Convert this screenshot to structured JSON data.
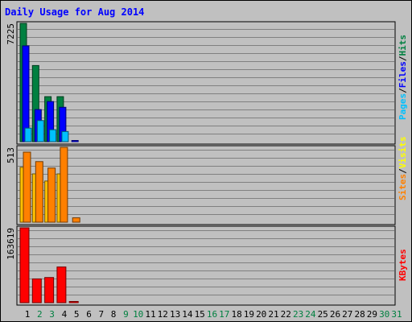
{
  "chart_data": {
    "type": "bar",
    "title": "Daily Usage for Aug 2014",
    "categories": [
      "1",
      "2",
      "3",
      "4",
      "5",
      "6",
      "7",
      "8",
      "9",
      "10",
      "11",
      "12",
      "13",
      "14",
      "15",
      "16",
      "17",
      "18",
      "19",
      "20",
      "21",
      "22",
      "23",
      "24",
      "25",
      "26",
      "27",
      "28",
      "29",
      "30",
      "31"
    ],
    "weekend_days": [
      "2",
      "3",
      "9",
      "10",
      "16",
      "17",
      "23",
      "24",
      "30",
      "31"
    ],
    "grid": true,
    "panels": [
      {
        "name": "hits-files-pages",
        "ymax_label": "7225",
        "ylim": [
          0,
          7225
        ],
        "label_parts": [
          {
            "text": "Pages",
            "color": "#00c0ff"
          },
          {
            "text": "/",
            "color": "#000000"
          },
          {
            "text": "Files",
            "color": "#0000ff"
          },
          {
            "text": "/",
            "color": "#000000"
          },
          {
            "text": "Hits",
            "color": "#008040"
          }
        ],
        "series": [
          {
            "name": "Hits",
            "color": "#008040",
            "values": [
              7225,
              4650,
              2750,
              2750,
              0,
              0,
              0,
              0,
              0,
              0,
              0,
              0,
              0,
              0,
              0,
              0,
              0,
              0,
              0,
              0,
              0,
              0,
              0,
              0,
              0,
              0,
              0,
              0,
              0,
              0,
              0
            ]
          },
          {
            "name": "Files",
            "color": "#0000ff",
            "values": [
              5850,
              1960,
              2450,
              2100,
              40,
              0,
              0,
              0,
              0,
              0,
              0,
              0,
              0,
              0,
              0,
              0,
              0,
              0,
              0,
              0,
              0,
              0,
              0,
              0,
              0,
              0,
              0,
              0,
              0,
              0,
              0
            ]
          },
          {
            "name": "Pages",
            "color": "#00c0ff",
            "values": [
              830,
              1290,
              730,
              620,
              0,
              0,
              0,
              0,
              0,
              0,
              0,
              0,
              0,
              0,
              0,
              0,
              0,
              0,
              0,
              0,
              0,
              0,
              0,
              0,
              0,
              0,
              0,
              0,
              0,
              0,
              0
            ]
          }
        ]
      },
      {
        "name": "visits-sites",
        "ymax_label": "513",
        "ylim": [
          0,
          513
        ],
        "label_parts": [
          {
            "text": "Sites",
            "color": "#ff8000"
          },
          {
            "text": "/",
            "color": "#000000"
          },
          {
            "text": "Visits",
            "color": "#ffff00"
          }
        ],
        "series": [
          {
            "name": "Visits",
            "color": "#ffc000",
            "values": [
              376,
              331,
              282,
              331,
              0,
              0,
              0,
              0,
              0,
              0,
              0,
              0,
              0,
              0,
              0,
              0,
              0,
              0,
              0,
              0,
              0,
              0,
              0,
              0,
              0,
              0,
              0,
              0,
              0,
              0,
              0
            ]
          },
          {
            "name": "Sites",
            "color": "#ff8000",
            "values": [
              480,
              415,
              371,
              513,
              30,
              0,
              0,
              0,
              0,
              0,
              0,
              0,
              0,
              0,
              0,
              0,
              0,
              0,
              0,
              0,
              0,
              0,
              0,
              0,
              0,
              0,
              0,
              0,
              0,
              0,
              0
            ]
          }
        ]
      },
      {
        "name": "kbytes",
        "ymax_label": "163619",
        "ylim": [
          0,
          163619
        ],
        "label_parts": [
          {
            "text": "KBytes",
            "color": "#ff0000"
          }
        ],
        "series": [
          {
            "name": "KBytes",
            "color": "#ff0000",
            "values": [
              163619,
              52000,
              55000,
              78000,
              1200,
              0,
              0,
              0,
              0,
              0,
              0,
              0,
              0,
              0,
              0,
              0,
              0,
              0,
              0,
              0,
              0,
              0,
              0,
              0,
              0,
              0,
              0,
              0,
              0,
              0,
              0
            ]
          }
        ]
      }
    ]
  }
}
